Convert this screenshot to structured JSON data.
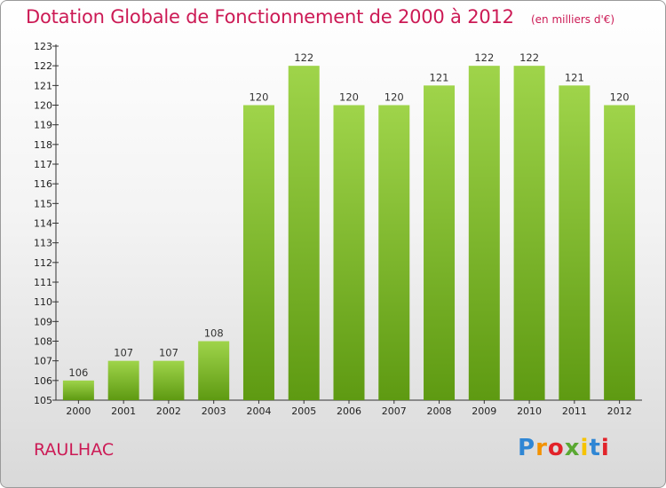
{
  "title": "Dotation Globale de Fonctionnement de 2000 à 2012",
  "unit_note": "(en milliers d'€)",
  "commune": "RAULHAC",
  "logo": {
    "letters": [
      "P",
      "r",
      "o",
      "x",
      "i",
      "t",
      "i"
    ],
    "colors": [
      "#2f86d4",
      "#f39200",
      "#e2232a",
      "#5aa832",
      "#f6c300",
      "#2f86d4",
      "#e2232a"
    ]
  },
  "colors": {
    "bar_top": "#9fd44a",
    "bar_bottom": "#5e9a12",
    "title": "#cc1a55"
  },
  "chart_data": {
    "type": "bar",
    "categories": [
      "2000",
      "2001",
      "2002",
      "2003",
      "2004",
      "2005",
      "2006",
      "2007",
      "2008",
      "2009",
      "2010",
      "2011",
      "2012"
    ],
    "values": [
      106,
      107,
      107,
      108,
      120,
      122,
      120,
      120,
      121,
      122,
      122,
      121,
      120
    ],
    "ylim": [
      105,
      123
    ],
    "yticks": [
      105,
      106,
      107,
      108,
      109,
      110,
      111,
      112,
      113,
      114,
      115,
      116,
      117,
      118,
      119,
      120,
      121,
      122,
      123
    ],
    "grid": false,
    "legend": "none"
  }
}
